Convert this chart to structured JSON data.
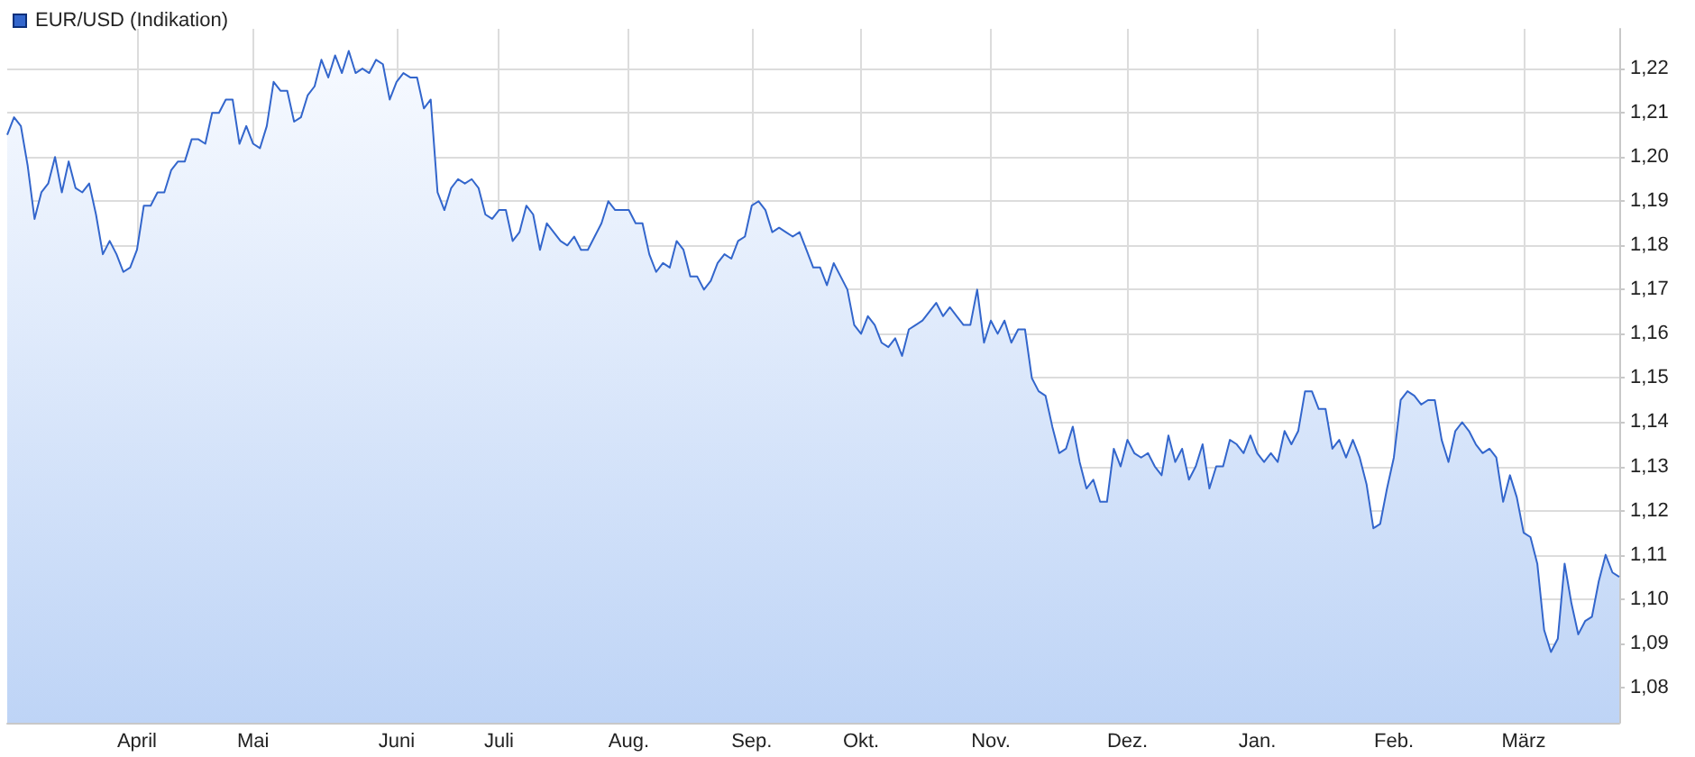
{
  "chart_data": {
    "type": "area",
    "categories": [
      null,
      null,
      null,
      null,
      null,
      null,
      null,
      null,
      null,
      null,
      null,
      null,
      null,
      null,
      null,
      null,
      null,
      null,
      null,
      "April",
      null,
      null,
      null,
      null,
      null,
      null,
      null,
      null,
      null,
      null,
      null,
      null,
      null,
      null,
      null,
      null,
      "Mai",
      null,
      null,
      null,
      null,
      null,
      null,
      null,
      null,
      null,
      null,
      null,
      null,
      null,
      null,
      null,
      null,
      null,
      null,
      null,
      null,
      "Juni",
      null,
      null,
      null,
      null,
      null,
      null,
      null,
      null,
      null,
      null,
      null,
      null,
      null,
      null,
      "Juli",
      null,
      null,
      null,
      null,
      null,
      null,
      null,
      null,
      null,
      null,
      null,
      null,
      null,
      null,
      null,
      null,
      null,
      null,
      "Aug.",
      null,
      null,
      null,
      null,
      null,
      null,
      null,
      null,
      null,
      null,
      null,
      null,
      null,
      null,
      null,
      null,
      null,
      "Sep.",
      null,
      null,
      null,
      null,
      null,
      null,
      null,
      null,
      null,
      null,
      null,
      null,
      null,
      null,
      null,
      "Okt.",
      null,
      null,
      null,
      null,
      null,
      null,
      null,
      null,
      null,
      null,
      null,
      null,
      null,
      null,
      null,
      null,
      null,
      null,
      "Nov.",
      null,
      null,
      null,
      null,
      null,
      null,
      null,
      null,
      null,
      null,
      null,
      null,
      null,
      null,
      null,
      null,
      null,
      null,
      null,
      "Dez.",
      null,
      null,
      null,
      null,
      null,
      null,
      null,
      null,
      null,
      null,
      null,
      null,
      null,
      null,
      null,
      null,
      null,
      null,
      "Jan.",
      null,
      null,
      null,
      null,
      null,
      null,
      null,
      null,
      null,
      null,
      null,
      null,
      null,
      null,
      null,
      null,
      null,
      null,
      null,
      "Feb.",
      null,
      null,
      null,
      null,
      null,
      null,
      null,
      null,
      null,
      null,
      null,
      null,
      null,
      null,
      null,
      null,
      null,
      null,
      "März",
      null,
      null,
      null,
      null,
      null,
      null,
      null,
      null,
      null,
      null,
      null,
      null,
      null,
      null
    ],
    "series": [
      {
        "name": "EUR/USD (Indikation)",
        "color": "#3366cc",
        "values": [
          1.205,
          1.209,
          1.207,
          1.198,
          1.186,
          1.192,
          1.194,
          1.2,
          1.192,
          1.199,
          1.193,
          1.192,
          1.194,
          1.187,
          1.178,
          1.181,
          1.178,
          1.174,
          1.175,
          1.179,
          1.189,
          1.189,
          1.192,
          1.192,
          1.197,
          1.199,
          1.199,
          1.204,
          1.204,
          1.203,
          1.21,
          1.21,
          1.213,
          1.213,
          1.203,
          1.207,
          1.203,
          1.202,
          1.207,
          1.217,
          1.215,
          1.215,
          1.208,
          1.209,
          1.214,
          1.216,
          1.222,
          1.218,
          1.223,
          1.219,
          1.224,
          1.219,
          1.22,
          1.219,
          1.222,
          1.221,
          1.213,
          1.217,
          1.219,
          1.218,
          1.218,
          1.211,
          1.213,
          1.192,
          1.188,
          1.193,
          1.195,
          1.194,
          1.195,
          1.193,
          1.187,
          1.186,
          1.188,
          1.188,
          1.181,
          1.183,
          1.189,
          1.187,
          1.179,
          1.185,
          1.183,
          1.181,
          1.18,
          1.182,
          1.179,
          1.179,
          1.182,
          1.185,
          1.19,
          1.188,
          1.188,
          1.188,
          1.185,
          1.185,
          1.178,
          1.174,
          1.176,
          1.175,
          1.181,
          1.179,
          1.173,
          1.173,
          1.17,
          1.172,
          1.176,
          1.178,
          1.177,
          1.181,
          1.182,
          1.189,
          1.19,
          1.188,
          1.183,
          1.184,
          1.183,
          1.182,
          1.183,
          1.179,
          1.175,
          1.175,
          1.171,
          1.176,
          1.173,
          1.17,
          1.162,
          1.16,
          1.164,
          1.162,
          1.158,
          1.157,
          1.159,
          1.155,
          1.161,
          1.162,
          1.163,
          1.165,
          1.167,
          1.164,
          1.166,
          1.164,
          1.162,
          1.162,
          1.17,
          1.158,
          1.163,
          1.16,
          1.163,
          1.158,
          1.161,
          1.161,
          1.15,
          1.147,
          1.146,
          1.139,
          1.133,
          1.134,
          1.139,
          1.131,
          1.125,
          1.127,
          1.122,
          1.122,
          1.134,
          1.13,
          1.136,
          1.133,
          1.132,
          1.133,
          1.13,
          1.128,
          1.137,
          1.131,
          1.134,
          1.127,
          1.13,
          1.135,
          1.125,
          1.13,
          1.13,
          1.136,
          1.135,
          1.133,
          1.137,
          1.133,
          1.131,
          1.133,
          1.131,
          1.138,
          1.135,
          1.138,
          1.147,
          1.147,
          1.143,
          1.143,
          1.134,
          1.136,
          1.132,
          1.136,
          1.132,
          1.126,
          1.116,
          1.117,
          1.125,
          1.132,
          1.145,
          1.147,
          1.146,
          1.144,
          1.145,
          1.145,
          1.136,
          1.131,
          1.138,
          1.14,
          1.138,
          1.135,
          1.133,
          1.134,
          1.132,
          1.122,
          1.128,
          1.123,
          1.115,
          1.114,
          1.108,
          1.093,
          1.088,
          1.091,
          1.108,
          1.099,
          1.092,
          1.095,
          1.096,
          1.104,
          1.11,
          1.106,
          1.105
        ]
      }
    ],
    "ylim": [
      1.072,
      1.229
    ],
    "yticks": [
      {
        "value": 1.08,
        "label": "1,08"
      },
      {
        "value": 1.09,
        "label": "1,09"
      },
      {
        "value": 1.1,
        "label": "1,10"
      },
      {
        "value": 1.11,
        "label": "1,11"
      },
      {
        "value": 1.12,
        "label": "1,12"
      },
      {
        "value": 1.13,
        "label": "1,13"
      },
      {
        "value": 1.14,
        "label": "1,14"
      },
      {
        "value": 1.15,
        "label": "1,15"
      },
      {
        "value": 1.16,
        "label": "1,16"
      },
      {
        "value": 1.17,
        "label": "1,17"
      },
      {
        "value": 1.18,
        "label": "1,18"
      },
      {
        "value": 1.19,
        "label": "1,19"
      },
      {
        "value": 1.2,
        "label": "1,20"
      },
      {
        "value": 1.21,
        "label": "1,21"
      },
      {
        "value": 1.22,
        "label": "1,22"
      }
    ],
    "grid": true,
    "legend": "top left",
    "marker": "none"
  }
}
